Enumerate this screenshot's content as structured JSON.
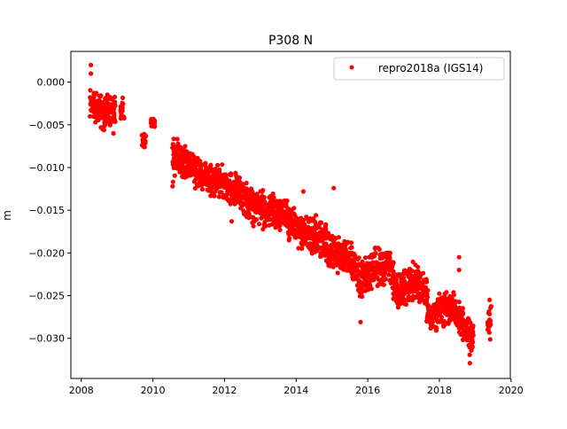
{
  "chart_data": {
    "type": "scatter",
    "title": "P308 N",
    "xlabel": "",
    "ylabel": "m",
    "xlim": [
      2007.71,
      2019.98
    ],
    "ylim": [
      -0.0347,
      0.0036
    ],
    "xticks": [
      2008,
      2010,
      2012,
      2014,
      2016,
      2018,
      2020
    ],
    "xtick_labels": [
      "2008",
      "2010",
      "2012",
      "2014",
      "2016",
      "2018",
      "2020"
    ],
    "yticks": [
      0.0,
      -0.005,
      -0.01,
      -0.015,
      -0.02,
      -0.025,
      -0.03
    ],
    "ytick_labels": [
      "0.000",
      "−0.005",
      "−0.010",
      "−0.015",
      "−0.020",
      "−0.025",
      "−0.030"
    ],
    "grid": false,
    "legend": {
      "position": "top-right",
      "entries": [
        "repro2018a (IGS14)"
      ]
    },
    "series": [
      {
        "name": "repro2018a (IGS14)",
        "color": "#ff0000",
        "marker": "circle",
        "note": "daily position time series, summarized as [year, min, max] bins",
        "bins": [
          [
            2008.3,
            -0.004,
            -0.0002
          ],
          [
            2008.4,
            -0.005,
            -0.0008
          ],
          [
            2008.5,
            -0.005,
            -0.001
          ],
          [
            2008.6,
            -0.006,
            -0.001
          ],
          [
            2008.7,
            -0.0055,
            -0.0012
          ],
          [
            2008.8,
            -0.0052,
            -0.0014
          ],
          [
            2008.9,
            -0.005,
            -0.0015
          ],
          [
            2009.15,
            -0.005,
            -0.0015
          ],
          [
            2009.75,
            -0.008,
            -0.0055
          ],
          [
            2010.0,
            -0.0055,
            -0.004
          ],
          [
            2010.6,
            -0.012,
            -0.006
          ],
          [
            2010.7,
            -0.011,
            -0.0065
          ],
          [
            2010.8,
            -0.0115,
            -0.007
          ],
          [
            2010.9,
            -0.0115,
            -0.007
          ],
          [
            2011.0,
            -0.012,
            -0.0075
          ],
          [
            2011.1,
            -0.012,
            -0.008
          ],
          [
            2011.2,
            -0.0125,
            -0.008
          ],
          [
            2011.3,
            -0.0125,
            -0.0085
          ],
          [
            2011.4,
            -0.013,
            -0.0085
          ],
          [
            2011.5,
            -0.013,
            -0.0085
          ],
          [
            2011.6,
            -0.014,
            -0.009
          ],
          [
            2011.7,
            -0.0135,
            -0.009
          ],
          [
            2011.8,
            -0.0135,
            -0.0095
          ],
          [
            2011.9,
            -0.014,
            -0.0095
          ],
          [
            2012.0,
            -0.0145,
            -0.01
          ],
          [
            2012.1,
            -0.0145,
            -0.01
          ],
          [
            2012.2,
            -0.015,
            -0.01
          ],
          [
            2012.3,
            -0.015,
            -0.0105
          ],
          [
            2012.4,
            -0.0155,
            -0.0105
          ],
          [
            2012.5,
            -0.016,
            -0.011
          ],
          [
            2012.6,
            -0.0162,
            -0.0112
          ],
          [
            2012.7,
            -0.0168,
            -0.0118
          ],
          [
            2012.8,
            -0.017,
            -0.012
          ],
          [
            2012.9,
            -0.0172,
            -0.0122
          ],
          [
            2013.0,
            -0.0172,
            -0.0122
          ],
          [
            2013.1,
            -0.0175,
            -0.0125
          ],
          [
            2013.2,
            -0.0175,
            -0.0125
          ],
          [
            2013.3,
            -0.0175,
            -0.0125
          ],
          [
            2013.4,
            -0.0178,
            -0.0126
          ],
          [
            2013.5,
            -0.0178,
            -0.0128
          ],
          [
            2013.6,
            -0.018,
            -0.0128
          ],
          [
            2013.7,
            -0.0182,
            -0.0132
          ],
          [
            2013.8,
            -0.0186,
            -0.0135
          ],
          [
            2013.9,
            -0.0192,
            -0.0142
          ],
          [
            2014.0,
            -0.0196,
            -0.0145
          ],
          [
            2014.1,
            -0.02,
            -0.0148
          ],
          [
            2014.2,
            -0.02,
            -0.015
          ],
          [
            2014.3,
            -0.0202,
            -0.015
          ],
          [
            2014.4,
            -0.0203,
            -0.015
          ],
          [
            2014.5,
            -0.0205,
            -0.0152
          ],
          [
            2014.6,
            -0.0205,
            -0.0152
          ],
          [
            2014.7,
            -0.021,
            -0.0158
          ],
          [
            2014.8,
            -0.0215,
            -0.016
          ],
          [
            2014.9,
            -0.022,
            -0.0168
          ],
          [
            2015.0,
            -0.0222,
            -0.0172
          ],
          [
            2015.1,
            -0.0225,
            -0.0175
          ],
          [
            2015.2,
            -0.0225,
            -0.0178
          ],
          [
            2015.3,
            -0.0225,
            -0.0178
          ],
          [
            2015.4,
            -0.0225,
            -0.0178
          ],
          [
            2015.5,
            -0.023,
            -0.0182
          ],
          [
            2015.6,
            -0.0235,
            -0.0185
          ],
          [
            2015.7,
            -0.025,
            -0.02
          ],
          [
            2015.8,
            -0.0255,
            -0.0205
          ],
          [
            2015.9,
            -0.0252,
            -0.0202
          ],
          [
            2016.0,
            -0.025,
            -0.02
          ],
          [
            2016.1,
            -0.0245,
            -0.0195
          ],
          [
            2016.2,
            -0.024,
            -0.019
          ],
          [
            2016.3,
            -0.0242,
            -0.0192
          ],
          [
            2016.4,
            -0.0245,
            -0.0192
          ],
          [
            2016.5,
            -0.0238,
            -0.0188
          ],
          [
            2016.6,
            -0.0235,
            -0.0185
          ],
          [
            2016.7,
            -0.0255,
            -0.0205
          ],
          [
            2016.8,
            -0.027,
            -0.022
          ],
          [
            2016.9,
            -0.0268,
            -0.0218
          ],
          [
            2017.0,
            -0.0265,
            -0.0215
          ],
          [
            2017.1,
            -0.0262,
            -0.0212
          ],
          [
            2017.2,
            -0.026,
            -0.021
          ],
          [
            2017.3,
            -0.0258,
            -0.0205
          ],
          [
            2017.4,
            -0.0255,
            -0.0205
          ],
          [
            2017.5,
            -0.0265,
            -0.0215
          ],
          [
            2017.6,
            -0.0268,
            -0.0218
          ],
          [
            2017.7,
            -0.0285,
            -0.024
          ],
          [
            2017.8,
            -0.0295,
            -0.0255
          ],
          [
            2017.9,
            -0.0292,
            -0.025
          ],
          [
            2018.0,
            -0.029,
            -0.0245
          ],
          [
            2018.1,
            -0.0288,
            -0.0245
          ],
          [
            2018.2,
            -0.0288,
            -0.0245
          ],
          [
            2018.3,
            -0.0288,
            -0.0245
          ],
          [
            2018.4,
            -0.0288,
            -0.0245
          ],
          [
            2018.5,
            -0.0295,
            -0.0252
          ],
          [
            2018.6,
            -0.03,
            -0.0255
          ],
          [
            2018.7,
            -0.031,
            -0.0265
          ],
          [
            2018.8,
            -0.0322,
            -0.027
          ],
          [
            2018.9,
            -0.032,
            -0.0275
          ],
          [
            2019.4,
            -0.0305,
            -0.0258
          ]
        ],
        "outliers": [
          [
            2008.27,
            0.002
          ],
          [
            2008.27,
            0.001
          ],
          [
            2008.9,
            -0.006
          ],
          [
            2010.55,
            -0.0122
          ],
          [
            2012.2,
            -0.0163
          ],
          [
            2014.2,
            -0.0128
          ],
          [
            2015.05,
            -0.0124
          ],
          [
            2015.8,
            -0.0281
          ],
          [
            2018.55,
            -0.0205
          ],
          [
            2018.55,
            -0.022
          ],
          [
            2018.85,
            -0.0329
          ],
          [
            2019.4,
            -0.0255
          ]
        ]
      }
    ]
  }
}
